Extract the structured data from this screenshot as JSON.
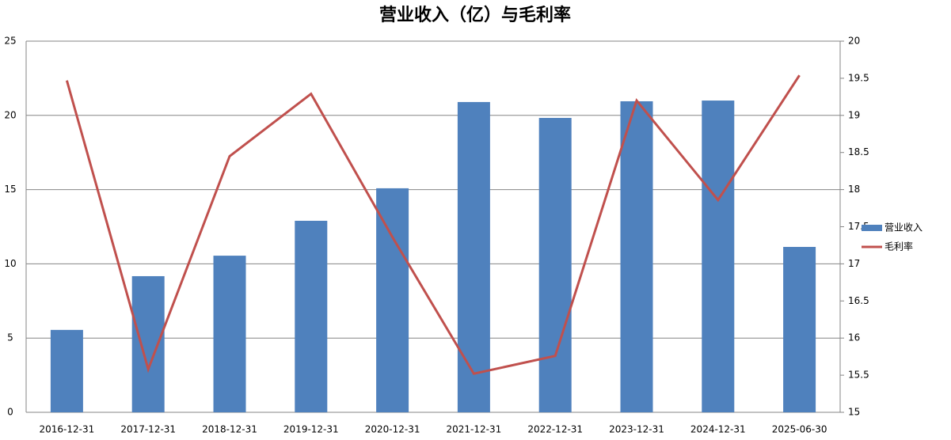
{
  "chart_data": {
    "type": "bar-line",
    "title": "营业收入（亿）与毛利率",
    "categories": [
      "2016-12-31",
      "2017-12-31",
      "2018-12-31",
      "2019-12-31",
      "2020-12-31",
      "2021-12-31",
      "2022-12-31",
      "2023-12-31",
      "2024-12-31",
      "2025-06-30"
    ],
    "series": [
      {
        "name": "营业收入",
        "type": "bar",
        "color": "#4f81bd",
        "values": [
          5.55,
          9.17,
          10.55,
          12.9,
          15.09,
          20.9,
          19.83,
          20.95,
          21.0,
          11.14
        ]
      },
      {
        "name": "毛利率",
        "type": "line",
        "axis": "y2",
        "color": "#c0504d",
        "values": [
          19.47,
          15.58,
          18.45,
          19.29,
          17.36,
          15.52,
          15.76,
          19.2,
          17.86,
          19.54
        ]
      }
    ],
    "ylim": [
      0,
      25
    ],
    "yticks": [
      0,
      5,
      10,
      15,
      20,
      25
    ],
    "y2lim": [
      15,
      20
    ],
    "y2ticks": [
      15,
      15.5,
      16,
      16.5,
      17,
      17.5,
      18,
      18.5,
      19,
      19.5,
      20
    ],
    "grid": true,
    "legend": "right"
  }
}
